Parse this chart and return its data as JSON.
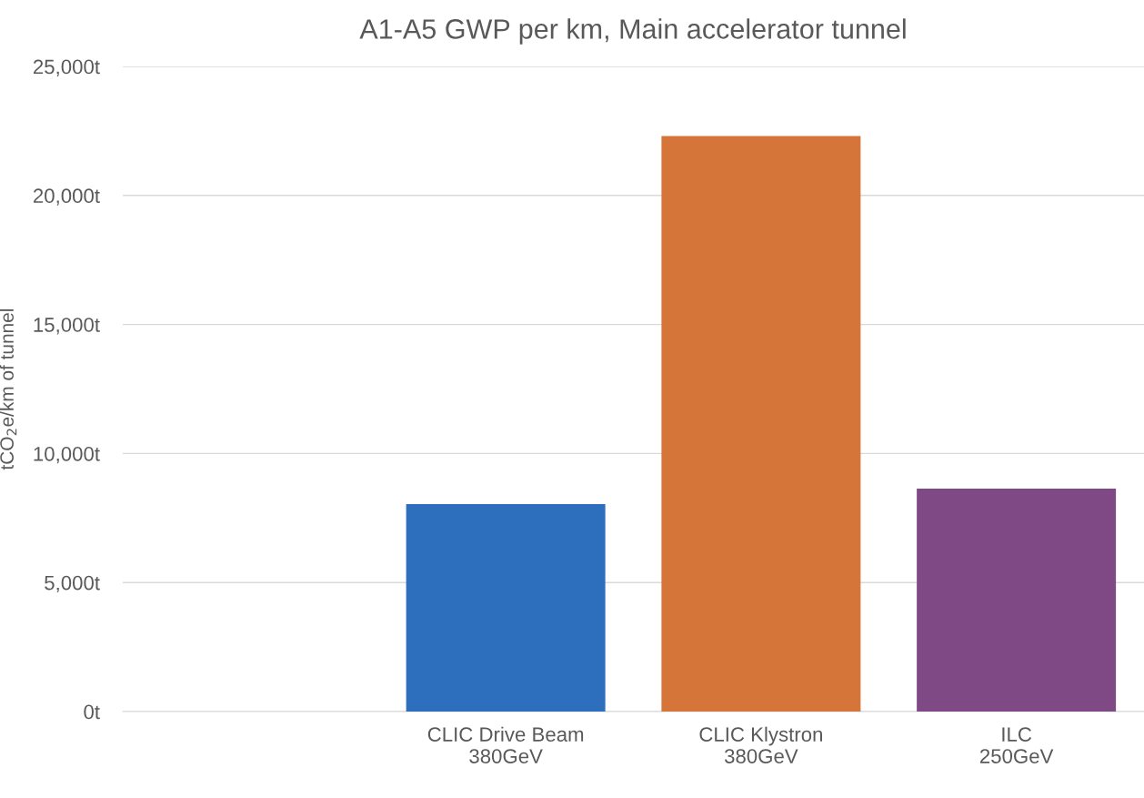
{
  "chart_data": {
    "type": "bar",
    "title": "A1-A5 GWP per km, Main accelerator tunnel",
    "ylabel": "tCO$_{2}$e/km of tunnel",
    "categories": [
      null,
      "CLIC Drive Beam\n380GeV",
      "CLIC Klystron\n380GeV",
      "ILC\n250GeV"
    ],
    "values": [
      null,
      8040,
      22300,
      8640
    ],
    "colors": [
      "#2e6fbd",
      "#2e6fbd",
      "#d6753a",
      "#7e4985"
    ],
    "ylim": [
      0,
      25000
    ],
    "yticks": [
      {
        "value": 0,
        "label": "0t"
      },
      {
        "value": 5000,
        "label": "5,000t"
      },
      {
        "value": 10000,
        "label": "10,000t"
      },
      {
        "value": 15000,
        "label": "15,000t"
      },
      {
        "value": 20000,
        "label": "20,000t"
      },
      {
        "value": 25000,
        "label": "25,000t"
      }
    ],
    "grid": "y"
  }
}
